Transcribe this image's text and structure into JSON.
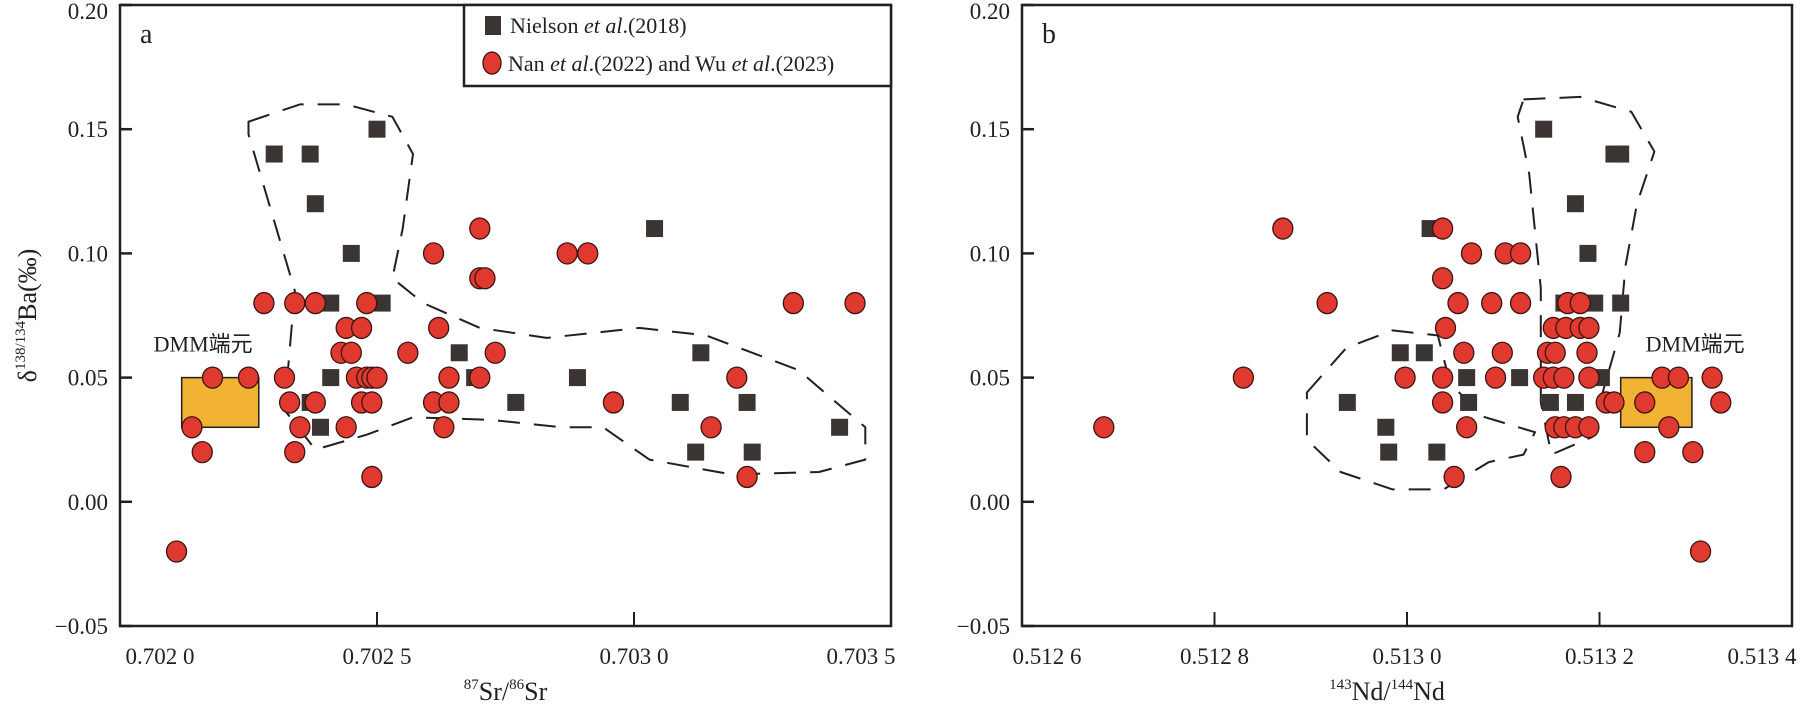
{
  "legend": {
    "placement": "top-right of panel a",
    "items": [
      {
        "marker": "square",
        "prefix": "Nielson ",
        "italic": "et al",
        "suffix": ".(2018)",
        "color": "#3a3533"
      },
      {
        "marker": "circle",
        "prefix": "Nan ",
        "italic": "et al",
        "suffix": ".(2022) and Wu ",
        "italic2": "et al",
        "suffix2": ".(2023)",
        "color": "#e03a30"
      }
    ]
  },
  "chart_data": [
    {
      "type": "scatter",
      "panel_label": "a",
      "xlabel": {
        "sup1": "87",
        "t1": "Sr/",
        "sup2": "86",
        "t2": "Sr"
      },
      "ylabel": {
        "t1": "δ",
        "sup": "138/134",
        "t2": "Ba(‰)"
      },
      "xlim": [
        0.702,
        0.7035
      ],
      "ylim": [
        -0.05,
        0.2
      ],
      "xticks": [
        0.702,
        0.7025,
        0.703,
        0.7035
      ],
      "xtick_labels": [
        "0.702 0",
        "0.702 5",
        "0.703 0",
        "0.703 5"
      ],
      "yticks": [
        0.2,
        0.15,
        0.1,
        0.05,
        0.0,
        -0.05
      ],
      "ytick_labels": [
        "0.20",
        "0.15",
        "0.10",
        "0.05",
        "0.00",
        "−0.05"
      ],
      "grid": false,
      "dmm": {
        "label": "DMM端元",
        "x": [
          0.70212,
          0.70227
        ],
        "y": [
          0.03,
          0.05
        ],
        "color": "#f2b233"
      },
      "envelopes": [
        [
          [
            0.70225,
            0.153
          ],
          [
            0.70235,
            0.16
          ],
          [
            0.70244,
            0.16
          ],
          [
            0.70253,
            0.155
          ],
          [
            0.70257,
            0.14
          ],
          [
            0.70255,
            0.11
          ],
          [
            0.70253,
            0.09
          ],
          [
            0.70259,
            0.08
          ],
          [
            0.7027,
            0.07
          ],
          [
            0.70283,
            0.066
          ],
          [
            0.70301,
            0.07
          ],
          [
            0.70314,
            0.067
          ],
          [
            0.70332,
            0.053
          ],
          [
            0.70345,
            0.03
          ],
          [
            0.70345,
            0.017
          ],
          [
            0.70336,
            0.012
          ],
          [
            0.70319,
            0.011
          ],
          [
            0.70303,
            0.017
          ],
          [
            0.70294,
            0.03
          ],
          [
            0.70286,
            0.03
          ],
          [
            0.70272,
            0.033
          ],
          [
            0.70257,
            0.034
          ],
          [
            0.70248,
            0.027
          ],
          [
            0.70238,
            0.021
          ],
          [
            0.70232,
            0.037
          ],
          [
            0.70234,
            0.085
          ],
          [
            0.70228,
            0.127
          ],
          [
            0.70225,
            0.148
          ]
        ]
      ],
      "series": [
        {
          "name": "Nielson et al.(2018)",
          "marker": "square",
          "points": [
            [
              0.7023,
              0.14
            ],
            [
              0.70237,
              0.14
            ],
            [
              0.70238,
              0.12
            ],
            [
              0.70245,
              0.1
            ],
            [
              0.7025,
              0.15
            ],
            [
              0.70241,
              0.08
            ],
            [
              0.70251,
              0.08
            ],
            [
              0.70241,
              0.05
            ],
            [
              0.70237,
              0.04
            ],
            [
              0.70239,
              0.03
            ],
            [
              0.70266,
              0.06
            ],
            [
              0.70269,
              0.05
            ],
            [
              0.70277,
              0.04
            ],
            [
              0.70289,
              0.05
            ],
            [
              0.70304,
              0.11
            ],
            [
              0.70309,
              0.04
            ],
            [
              0.70313,
              0.06
            ],
            [
              0.70312,
              0.02
            ],
            [
              0.70322,
              0.04
            ],
            [
              0.70323,
              0.02
            ],
            [
              0.7034,
              0.03
            ]
          ]
        },
        {
          "name": "Nan et al.(2022) and Wu et al.(2023)",
          "marker": "circle",
          "points": [
            [
              0.70211,
              -0.02
            ],
            [
              0.70214,
              0.03
            ],
            [
              0.70216,
              0.02
            ],
            [
              0.70218,
              0.05
            ],
            [
              0.70225,
              0.05
            ],
            [
              0.70228,
              0.08
            ],
            [
              0.70232,
              0.05
            ],
            [
              0.70233,
              0.04
            ],
            [
              0.70234,
              0.08
            ],
            [
              0.70234,
              0.02
            ],
            [
              0.70235,
              0.03
            ],
            [
              0.70238,
              0.04
            ],
            [
              0.70238,
              0.08
            ],
            [
              0.70243,
              0.06
            ],
            [
              0.70244,
              0.07
            ],
            [
              0.70245,
              0.06
            ],
            [
              0.70246,
              0.05
            ],
            [
              0.70247,
              0.04
            ],
            [
              0.70244,
              0.03
            ],
            [
              0.70247,
              0.07
            ],
            [
              0.70248,
              0.05
            ],
            [
              0.70248,
              0.08
            ],
            [
              0.70249,
              0.04
            ],
            [
              0.70249,
              0.05
            ],
            [
              0.7025,
              0.05
            ],
            [
              0.70249,
              0.01
            ],
            [
              0.70256,
              0.06
            ],
            [
              0.70261,
              0.1
            ],
            [
              0.70262,
              0.07
            ],
            [
              0.70261,
              0.04
            ],
            [
              0.70264,
              0.05
            ],
            [
              0.70264,
              0.04
            ],
            [
              0.70263,
              0.03
            ],
            [
              0.7027,
              0.11
            ],
            [
              0.7027,
              0.09
            ],
            [
              0.70271,
              0.09
            ],
            [
              0.7027,
              0.05
            ],
            [
              0.70273,
              0.06
            ],
            [
              0.70287,
              0.1
            ],
            [
              0.70291,
              0.1
            ],
            [
              0.70296,
              0.04
            ],
            [
              0.70315,
              0.03
            ],
            [
              0.7032,
              0.05
            ],
            [
              0.70322,
              0.01
            ],
            [
              0.70331,
              0.08
            ],
            [
              0.70343,
              0.08
            ]
          ]
        }
      ]
    },
    {
      "type": "scatter",
      "panel_label": "b",
      "xlabel": {
        "sup1": "143",
        "t1": "Nd/",
        "sup2": "144",
        "t2": "Nd"
      },
      "xlim": [
        0.5126,
        0.5134
      ],
      "ylim": [
        -0.05,
        0.2
      ],
      "xticks": [
        0.5126,
        0.5128,
        0.513,
        0.5132,
        0.5134
      ],
      "xtick_labels": [
        "0.512 6",
        "0.512 8",
        "0.513 0",
        "0.513 2",
        "0.513 4"
      ],
      "yticks": [
        0.2,
        0.15,
        0.1,
        0.05,
        0.0,
        -0.05
      ],
      "ytick_labels": [
        "0.20",
        "0.15",
        "0.10",
        "0.05",
        "0.00",
        "−0.05"
      ],
      "grid": false,
      "dmm": {
        "label": "DMM端元",
        "x": [
          0.513222,
          0.513296
        ],
        "y": [
          0.03,
          0.05
        ],
        "color": "#f2b233"
      },
      "envelopes": [
        [
          [
            0.512896,
            0.044
          ],
          [
            0.512937,
            0.062
          ],
          [
            0.512985,
            0.069
          ],
          [
            0.513032,
            0.067
          ],
          [
            0.513044,
            0.049
          ],
          [
            0.513073,
            0.035
          ],
          [
            0.513133,
            0.028
          ],
          [
            0.513121,
            0.019
          ],
          [
            0.513085,
            0.016
          ],
          [
            0.513038,
            0.005
          ],
          [
            0.512985,
            0.005
          ],
          [
            0.512931,
            0.012
          ],
          [
            0.512896,
            0.025
          ]
        ],
        [
          [
            0.513121,
            0.162
          ],
          [
            0.51318,
            0.163
          ],
          [
            0.513233,
            0.157
          ],
          [
            0.513257,
            0.141
          ],
          [
            0.513239,
            0.12
          ],
          [
            0.513227,
            0.095
          ],
          [
            0.513221,
            0.068
          ],
          [
            0.513204,
            0.045
          ],
          [
            0.513192,
            0.026
          ],
          [
            0.51315,
            0.019
          ],
          [
            0.513139,
            0.04
          ],
          [
            0.513139,
            0.086
          ],
          [
            0.513127,
            0.132
          ],
          [
            0.513115,
            0.155
          ]
        ]
      ],
      "series": [
        {
          "name": "Nielson et al.(2018)",
          "marker": "square",
          "points": [
            [
              0.513142,
              0.15
            ],
            [
              0.513215,
              0.14
            ],
            [
              0.513222,
              0.14
            ],
            [
              0.513175,
              0.12
            ],
            [
              0.513024,
              0.11
            ],
            [
              0.513188,
              0.1
            ],
            [
              0.513163,
              0.08
            ],
            [
              0.513195,
              0.08
            ],
            [
              0.513222,
              0.08
            ],
            [
              0.512993,
              0.06
            ],
            [
              0.513018,
              0.06
            ],
            [
              0.513062,
              0.05
            ],
            [
              0.513117,
              0.05
            ],
            [
              0.513202,
              0.05
            ],
            [
              0.512938,
              0.04
            ],
            [
              0.513064,
              0.04
            ],
            [
              0.513149,
              0.04
            ],
            [
              0.513175,
              0.04
            ],
            [
              0.512978,
              0.03
            ],
            [
              0.513188,
              0.03
            ],
            [
              0.512981,
              0.02
            ],
            [
              0.513031,
              0.02
            ]
          ]
        },
        {
          "name": "Nan et al.(2022) and Wu et al.(2023)",
          "marker": "circle",
          "points": [
            [
              0.512685,
              0.03
            ],
            [
              0.51283,
              0.05
            ],
            [
              0.512871,
              0.11
            ],
            [
              0.512917,
              0.08
            ],
            [
              0.512998,
              0.05
            ],
            [
              0.513037,
              0.11
            ],
            [
              0.513037,
              0.09
            ],
            [
              0.51304,
              0.07
            ],
            [
              0.513037,
              0.05
            ],
            [
              0.513037,
              0.04
            ],
            [
              0.513049,
              0.01
            ],
            [
              0.513053,
              0.08
            ],
            [
              0.513059,
              0.06
            ],
            [
              0.513062,
              0.03
            ],
            [
              0.513067,
              0.1
            ],
            [
              0.513088,
              0.08
            ],
            [
              0.513092,
              0.05
            ],
            [
              0.513099,
              0.06
            ],
            [
              0.513102,
              0.1
            ],
            [
              0.513118,
              0.1
            ],
            [
              0.513118,
              0.08
            ],
            [
              0.513142,
              0.05
            ],
            [
              0.513146,
              0.06
            ],
            [
              0.513152,
              0.07
            ],
            [
              0.513152,
              0.05
            ],
            [
              0.513154,
              0.03
            ],
            [
              0.513154,
              0.06
            ],
            [
              0.51316,
              0.01
            ],
            [
              0.513163,
              0.05
            ],
            [
              0.513163,
              0.03
            ],
            [
              0.513165,
              0.07
            ],
            [
              0.513167,
              0.08
            ],
            [
              0.513175,
              0.03
            ],
            [
              0.51318,
              0.07
            ],
            [
              0.51318,
              0.08
            ],
            [
              0.513187,
              0.06
            ],
            [
              0.513189,
              0.07
            ],
            [
              0.513189,
              0.05
            ],
            [
              0.513189,
              0.03
            ],
            [
              0.513207,
              0.04
            ],
            [
              0.513215,
              0.04
            ],
            [
              0.513247,
              0.04
            ],
            [
              0.513247,
              0.02
            ],
            [
              0.513265,
              0.05
            ],
            [
              0.513272,
              0.03
            ],
            [
              0.513282,
              0.05
            ],
            [
              0.513297,
              0.02
            ],
            [
              0.513305,
              -0.02
            ],
            [
              0.513317,
              0.05
            ],
            [
              0.513326,
              0.04
            ]
          ]
        }
      ]
    }
  ]
}
